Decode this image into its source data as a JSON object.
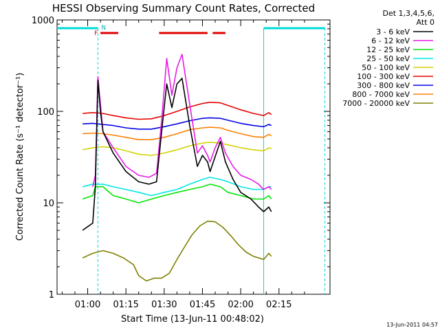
{
  "chart_data": {
    "type": "line",
    "title": "HESSI Observing Summary Count Rates, Corrected",
    "xlabel": "Start Time (13-Jun-11 00:48:02)",
    "ylabel": "Corrected Count Rate (s⁻¹ detector⁻¹)",
    "x_ticks": [
      "01:00",
      "01:15",
      "01:30",
      "01:45",
      "02:00",
      "02:15"
    ],
    "y_ticks": [
      "1",
      "10",
      "100",
      "1000"
    ],
    "y_scale": "log",
    "ylim": [
      1,
      1000
    ],
    "xlim_minutes": [
      48,
      155
    ],
    "detectors": "Det 1,3,4,5,6,",
    "attenuator": "Att 0",
    "timestamp": "13-Jun-2011 04:57",
    "night_marker": "N",
    "flare_marker": "F",
    "night_periods": [
      [
        48,
        64
      ],
      [
        129,
        153
      ]
    ],
    "flare_periods": [
      [
        65,
        72
      ],
      [
        88,
        107
      ],
      [
        109,
        114
      ]
    ],
    "series": [
      {
        "name": "3 - 6 keV",
        "color": "#000000",
        "points": [
          [
            58,
            5
          ],
          [
            62,
            6
          ],
          [
            63,
            15
          ],
          [
            64,
            220
          ],
          [
            65,
            100
          ],
          [
            66,
            60
          ],
          [
            70,
            35
          ],
          [
            75,
            22
          ],
          [
            80,
            17
          ],
          [
            84,
            16
          ],
          [
            87,
            17
          ],
          [
            89,
            60
          ],
          [
            91,
            200
          ],
          [
            93,
            110
          ],
          [
            95,
            200
          ],
          [
            97,
            230
          ],
          [
            100,
            70
          ],
          [
            103,
            25
          ],
          [
            105,
            33
          ],
          [
            107,
            28
          ],
          [
            108,
            22
          ],
          [
            110,
            32
          ],
          [
            112,
            47
          ],
          [
            114,
            28
          ],
          [
            117,
            18
          ],
          [
            120,
            13
          ],
          [
            124,
            11
          ],
          [
            127,
            9
          ],
          [
            129,
            8
          ],
          [
            131,
            9
          ],
          [
            132,
            8
          ]
        ]
      },
      {
        "name": "6 - 12 keV",
        "color": "#e619e6",
        "points": [
          [
            62,
            15
          ],
          [
            63,
            20
          ],
          [
            64,
            240
          ],
          [
            65,
            120
          ],
          [
            66,
            60
          ],
          [
            70,
            40
          ],
          [
            75,
            25
          ],
          [
            80,
            20
          ],
          [
            84,
            19
          ],
          [
            87,
            21
          ],
          [
            89,
            80
          ],
          [
            91,
            380
          ],
          [
            93,
            150
          ],
          [
            95,
            300
          ],
          [
            97,
            420
          ],
          [
            100,
            120
          ],
          [
            103,
            35
          ],
          [
            105,
            42
          ],
          [
            107,
            33
          ],
          [
            108,
            28
          ],
          [
            110,
            40
          ],
          [
            112,
            52
          ],
          [
            114,
            35
          ],
          [
            117,
            25
          ],
          [
            120,
            20
          ],
          [
            124,
            18
          ],
          [
            127,
            16
          ],
          [
            129,
            14
          ],
          [
            131,
            15
          ],
          [
            132,
            14
          ]
        ]
      },
      {
        "name": "12 - 25 keV",
        "color": "#00e600",
        "points": [
          [
            58,
            11
          ],
          [
            62,
            12
          ],
          [
            63,
            15
          ],
          [
            66,
            15
          ],
          [
            70,
            12
          ],
          [
            75,
            11
          ],
          [
            80,
            10
          ],
          [
            85,
            11
          ],
          [
            90,
            12
          ],
          [
            95,
            13
          ],
          [
            100,
            14
          ],
          [
            105,
            15
          ],
          [
            108,
            16
          ],
          [
            112,
            15
          ],
          [
            115,
            13
          ],
          [
            120,
            12
          ],
          [
            125,
            11
          ],
          [
            129,
            11
          ],
          [
            131,
            12
          ],
          [
            132,
            11
          ]
        ]
      },
      {
        "name": "25 - 50 keV",
        "color": "#00e6e6",
        "points": [
          [
            58,
            15
          ],
          [
            62,
            16
          ],
          [
            66,
            16
          ],
          [
            70,
            15
          ],
          [
            75,
            14
          ],
          [
            80,
            13
          ],
          [
            85,
            12
          ],
          [
            90,
            13
          ],
          [
            95,
            14
          ],
          [
            100,
            16
          ],
          [
            105,
            18
          ],
          [
            108,
            19
          ],
          [
            112,
            18
          ],
          [
            115,
            17
          ],
          [
            120,
            15
          ],
          [
            125,
            14
          ],
          [
            129,
            14
          ],
          [
            131,
            15
          ],
          [
            132,
            15
          ]
        ]
      },
      {
        "name": "50 - 100 keV",
        "color": "#d2d200",
        "points": [
          [
            58,
            38
          ],
          [
            62,
            40
          ],
          [
            66,
            41
          ],
          [
            70,
            40
          ],
          [
            75,
            37
          ],
          [
            80,
            34
          ],
          [
            85,
            33
          ],
          [
            90,
            35
          ],
          [
            95,
            38
          ],
          [
            100,
            42
          ],
          [
            105,
            45
          ],
          [
            108,
            46
          ],
          [
            112,
            45
          ],
          [
            115,
            43
          ],
          [
            120,
            40
          ],
          [
            125,
            38
          ],
          [
            129,
            37
          ],
          [
            131,
            40
          ],
          [
            132,
            39
          ]
        ]
      },
      {
        "name": "100 - 300 keV",
        "color": "#e60000",
        "points": [
          [
            58,
            95
          ],
          [
            62,
            97
          ],
          [
            66,
            95
          ],
          [
            70,
            90
          ],
          [
            75,
            85
          ],
          [
            80,
            82
          ],
          [
            85,
            83
          ],
          [
            90,
            90
          ],
          [
            95,
            100
          ],
          [
            100,
            112
          ],
          [
            105,
            122
          ],
          [
            108,
            126
          ],
          [
            112,
            124
          ],
          [
            115,
            116
          ],
          [
            120,
            104
          ],
          [
            125,
            95
          ],
          [
            129,
            90
          ],
          [
            131,
            97
          ],
          [
            132,
            92
          ]
        ]
      },
      {
        "name": "300 - 800 keV",
        "color": "#0000e6",
        "points": [
          [
            58,
            73
          ],
          [
            62,
            74
          ],
          [
            66,
            72
          ],
          [
            70,
            70
          ],
          [
            75,
            66
          ],
          [
            80,
            64
          ],
          [
            85,
            64
          ],
          [
            90,
            68
          ],
          [
            95,
            73
          ],
          [
            100,
            79
          ],
          [
            105,
            84
          ],
          [
            108,
            85
          ],
          [
            112,
            84
          ],
          [
            115,
            80
          ],
          [
            120,
            74
          ],
          [
            125,
            70
          ],
          [
            129,
            68
          ],
          [
            131,
            72
          ],
          [
            132,
            70
          ]
        ]
      },
      {
        "name": "800 - 7000 keV",
        "color": "#ff7f00",
        "points": [
          [
            58,
            57
          ],
          [
            62,
            58
          ],
          [
            66,
            57
          ],
          [
            70,
            55
          ],
          [
            75,
            52
          ],
          [
            80,
            49
          ],
          [
            85,
            49
          ],
          [
            90,
            52
          ],
          [
            95,
            57
          ],
          [
            100,
            63
          ],
          [
            105,
            66
          ],
          [
            108,
            67
          ],
          [
            112,
            66
          ],
          [
            115,
            62
          ],
          [
            120,
            57
          ],
          [
            125,
            53
          ],
          [
            129,
            52
          ],
          [
            131,
            56
          ],
          [
            132,
            54
          ]
        ]
      },
      {
        "name": "7000 - 20000 keV",
        "color": "#7f7f00",
        "points": [
          [
            58,
            2.5
          ],
          [
            62,
            2.8
          ],
          [
            66,
            3.0
          ],
          [
            70,
            2.8
          ],
          [
            74,
            2.5
          ],
          [
            78,
            2.1
          ],
          [
            80,
            1.6
          ],
          [
            83,
            1.4
          ],
          [
            86,
            1.5
          ],
          [
            89,
            1.5
          ],
          [
            92,
            1.7
          ],
          [
            95,
            2.4
          ],
          [
            98,
            3.3
          ],
          [
            101,
            4.5
          ],
          [
            104,
            5.6
          ],
          [
            107,
            6.3
          ],
          [
            110,
            6.2
          ],
          [
            113,
            5.4
          ],
          [
            116,
            4.4
          ],
          [
            119,
            3.5
          ],
          [
            122,
            2.9
          ],
          [
            125,
            2.6
          ],
          [
            129,
            2.4
          ],
          [
            131,
            2.8
          ],
          [
            132,
            2.6
          ]
        ]
      }
    ]
  }
}
